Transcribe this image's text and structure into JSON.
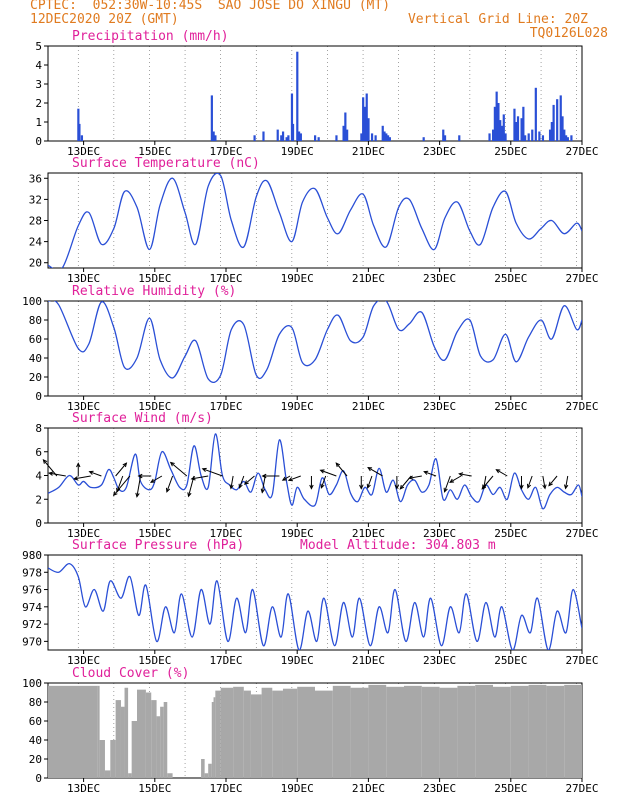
{
  "header": {
    "line1_left": "CPTEC:  052:30W-10:45S  SAO JOSE DO XINGU (MT)",
    "line2_left": "12DEC2020 20Z (GMT)",
    "line2_right": "Vertical Grid Line: 20Z",
    "line3_right": "TQ0126L028"
  },
  "colors": {
    "header": "#e07b20",
    "title": "#e0209a",
    "line": "#2a4fd6",
    "cloud": "#a8a8a8",
    "axis": "#000000"
  },
  "x_ticks": [
    "13DEC",
    "15DEC",
    "17DEC",
    "19DEC",
    "21DEC",
    "23DEC",
    "25DEC",
    "27DEC"
  ],
  "chart_data": [
    {
      "type": "bar",
      "title": "Precipitation (mm/h)",
      "ylim": [
        0,
        5
      ],
      "yticks": [
        "0",
        "1",
        "2",
        "3",
        "4",
        "5"
      ],
      "x_days": [
        12.85,
        12.88,
        12.95,
        16.6,
        16.65,
        16.7,
        17.8,
        18.05,
        18.45,
        18.55,
        18.6,
        18.7,
        18.75,
        18.85,
        18.88,
        19.0,
        19.05,
        19.08,
        19.1,
        19.5,
        19.6,
        20.1,
        20.3,
        20.35,
        20.4,
        20.8,
        20.85,
        20.9,
        20.95,
        21.0,
        21.1,
        21.2,
        21.4,
        21.45,
        21.5,
        21.55,
        21.6,
        22.55,
        23.1,
        23.15,
        23.55,
        24.4,
        24.5,
        24.55,
        24.6,
        24.65,
        24.7,
        24.75,
        24.8,
        24.85,
        25.1,
        25.15,
        25.2,
        25.3,
        25.35,
        25.4,
        25.5,
        25.6,
        25.7,
        25.8,
        25.9,
        26.1,
        26.15,
        26.2,
        26.3,
        26.4,
        26.45,
        26.5,
        26.55,
        26.6,
        26.7
      ],
      "values": [
        1.7,
        0.9,
        0.3,
        2.4,
        0.5,
        0.3,
        0.3,
        0.5,
        0.6,
        0.3,
        0.5,
        0.2,
        0.3,
        2.5,
        0.9,
        4.7,
        0.5,
        0.3,
        0.4,
        0.3,
        0.2,
        0.3,
        0.8,
        1.5,
        0.6,
        0.4,
        2.3,
        1.8,
        2.5,
        1.2,
        0.4,
        0.3,
        0.8,
        0.5,
        0.4,
        0.3,
        0.2,
        0.2,
        0.6,
        0.3,
        0.3,
        0.4,
        0.6,
        1.8,
        2.6,
        2.0,
        1.1,
        0.8,
        1.4,
        0.4,
        1.7,
        1.0,
        1.3,
        1.2,
        1.8,
        0.3,
        0.4,
        0.6,
        2.8,
        0.5,
        0.3,
        0.6,
        1.0,
        1.9,
        2.2,
        2.4,
        1.3,
        0.6,
        0.3,
        0.2,
        0.3
      ]
    },
    {
      "type": "line",
      "title": "Surface Temperature (nC)",
      "ylim": [
        19,
        37
      ],
      "yticks": [
        "20",
        "24",
        "28",
        "32",
        "36"
      ],
      "x_days": [
        12.0,
        12.4,
        12.85,
        13.15,
        13.5,
        13.85,
        14.15,
        14.5,
        14.85,
        15.15,
        15.5,
        15.85,
        16.15,
        16.5,
        16.85,
        17.15,
        17.5,
        17.85,
        18.15,
        18.5,
        18.85,
        19.15,
        19.5,
        19.85,
        20.15,
        20.5,
        20.85,
        21.15,
        21.5,
        21.85,
        22.15,
        22.5,
        22.85,
        23.15,
        23.5,
        23.85,
        24.15,
        24.5,
        24.85,
        25.15,
        25.5,
        25.85,
        26.15,
        26.5,
        26.85,
        27.0
      ],
      "values": [
        19.5,
        19.0,
        27.0,
        29.5,
        23.5,
        26.5,
        33.5,
        30.5,
        22.5,
        31.0,
        36.0,
        29.5,
        23.5,
        34.5,
        36.5,
        28.0,
        23.0,
        32.5,
        35.5,
        29.5,
        24.0,
        31.5,
        34.0,
        28.5,
        25.5,
        30.0,
        33.0,
        27.0,
        23.0,
        30.5,
        32.0,
        26.5,
        22.5,
        28.5,
        31.5,
        26.0,
        23.5,
        30.5,
        33.5,
        27.5,
        24.5,
        26.5,
        28.0,
        25.5,
        27.5,
        26.0
      ]
    },
    {
      "type": "line",
      "title": "Relative Humidity (%)",
      "ylim": [
        0,
        100
      ],
      "yticks": [
        "0",
        "20",
        "40",
        "60",
        "80",
        "100"
      ],
      "x_days": [
        12.0,
        12.3,
        12.85,
        13.15,
        13.5,
        13.85,
        14.15,
        14.5,
        14.85,
        15.15,
        15.5,
        15.85,
        16.15,
        16.5,
        16.85,
        17.15,
        17.5,
        17.85,
        18.15,
        18.5,
        18.85,
        19.15,
        19.5,
        19.85,
        20.15,
        20.5,
        20.85,
        21.15,
        21.5,
        21.85,
        22.15,
        22.5,
        22.85,
        23.15,
        23.5,
        23.85,
        24.15,
        24.5,
        24.85,
        25.15,
        25.5,
        25.85,
        26.15,
        26.5,
        26.85,
        27.0
      ],
      "values": [
        100,
        96,
        50,
        55,
        99,
        72,
        30,
        40,
        82,
        38,
        19,
        42,
        58,
        18,
        22,
        70,
        75,
        22,
        28,
        65,
        72,
        35,
        38,
        70,
        85,
        58,
        62,
        95,
        100,
        70,
        76,
        88,
        52,
        38,
        68,
        80,
        42,
        38,
        65,
        36,
        62,
        80,
        60,
        95,
        70,
        80
      ]
    },
    {
      "type": "line",
      "title": "Surface Wind (m/s)",
      "ylim": [
        0,
        8
      ],
      "yticks": [
        "0",
        "2",
        "4",
        "6",
        "8"
      ],
      "x_days": [
        12.0,
        12.3,
        12.6,
        12.85,
        13.0,
        13.2,
        13.5,
        13.7,
        13.85,
        14.0,
        14.2,
        14.45,
        14.6,
        14.85,
        15.0,
        15.2,
        15.45,
        15.7,
        15.9,
        16.1,
        16.3,
        16.5,
        16.7,
        16.9,
        17.1,
        17.3,
        17.5,
        17.7,
        17.9,
        18.1,
        18.3,
        18.5,
        18.7,
        18.85,
        19.0,
        19.2,
        19.5,
        19.7,
        19.9,
        20.1,
        20.3,
        20.5,
        20.7,
        20.9,
        21.1,
        21.3,
        21.5,
        21.7,
        21.9,
        22.1,
        22.3,
        22.5,
        22.7,
        22.9,
        23.1,
        23.3,
        23.5,
        23.7,
        23.9,
        24.1,
        24.3,
        24.5,
        24.7,
        24.9,
        25.1,
        25.3,
        25.5,
        25.7,
        25.9,
        26.1,
        26.3,
        26.5,
        26.7,
        26.9,
        27.0
      ],
      "values": [
        2.5,
        3.0,
        4.0,
        3.2,
        3.5,
        3.0,
        3.2,
        4.5,
        3.8,
        2.8,
        3.0,
        5.8,
        3.5,
        2.8,
        3.5,
        6.0,
        4.5,
        3.0,
        3.2,
        6.5,
        4.0,
        3.0,
        7.5,
        4.0,
        3.2,
        2.8,
        3.5,
        2.6,
        4.2,
        2.8,
        2.4,
        7.0,
        3.5,
        1.5,
        3.0,
        2.0,
        1.5,
        3.8,
        2.4,
        3.2,
        4.4,
        2.5,
        1.8,
        3.0,
        2.4,
        4.6,
        2.6,
        3.6,
        1.8,
        3.2,
        3.6,
        2.6,
        3.2,
        5.4,
        2.0,
        2.8,
        2.0,
        3.2,
        2.2,
        1.8,
        3.2,
        2.4,
        3.0,
        2.0,
        4.2,
        2.8,
        2.0,
        3.0,
        1.2,
        2.4,
        3.0,
        2.6,
        2.4,
        3.2,
        2.2
      ]
    },
    {
      "type": "line",
      "title": "Surface Pressure (hPa)",
      "subtitle": "Model Altitude: 304.803 m",
      "ylim": [
        969,
        980
      ],
      "yticks": [
        "970",
        "972",
        "974",
        "976",
        "978",
        "980"
      ],
      "x_days": [
        12.0,
        12.3,
        12.6,
        12.85,
        13.05,
        13.3,
        13.55,
        13.75,
        14.05,
        14.3,
        14.55,
        14.75,
        15.05,
        15.3,
        15.55,
        15.75,
        16.05,
        16.3,
        16.55,
        16.75,
        17.05,
        17.3,
        17.55,
        17.75,
        18.05,
        18.3,
        18.55,
        18.75,
        19.05,
        19.3,
        19.55,
        19.75,
        20.05,
        20.3,
        20.55,
        20.75,
        21.05,
        21.3,
        21.55,
        21.75,
        22.05,
        22.3,
        22.55,
        22.75,
        23.05,
        23.3,
        23.55,
        23.75,
        24.05,
        24.3,
        24.55,
        24.75,
        25.05,
        25.3,
        25.55,
        25.75,
        26.05,
        26.3,
        26.55,
        26.75,
        27.0
      ],
      "values": [
        978.5,
        978.0,
        979.0,
        977.5,
        974.0,
        976.0,
        973.5,
        977.0,
        975.0,
        977.5,
        973.0,
        976.5,
        970.0,
        974.0,
        971.0,
        975.5,
        970.5,
        976.0,
        972.0,
        977.0,
        970.0,
        975.0,
        971.0,
        976.0,
        969.5,
        974.0,
        970.5,
        975.5,
        969.0,
        973.5,
        970.0,
        975.0,
        969.5,
        974.5,
        970.5,
        975.0,
        969.5,
        974.0,
        971.0,
        976.0,
        970.0,
        974.5,
        970.5,
        975.0,
        969.5,
        974.0,
        971.0,
        975.5,
        970.0,
        974.5,
        970.5,
        974.0,
        969.0,
        973.0,
        971.0,
        975.0,
        969.0,
        973.5,
        971.0,
        976.0,
        971.5
      ]
    },
    {
      "type": "area",
      "title": "Cloud Cover (%)",
      "ylim": [
        0,
        100
      ],
      "yticks": [
        "0",
        "20",
        "40",
        "60",
        "80",
        "100"
      ],
      "x_days": [
        12.0,
        13.4,
        13.45,
        13.6,
        13.75,
        13.9,
        14.05,
        14.15,
        14.25,
        14.35,
        14.5,
        14.75,
        14.9,
        15.05,
        15.15,
        15.25,
        15.35,
        15.5,
        15.75,
        16.0,
        16.3,
        16.4,
        16.5,
        16.6,
        16.65,
        16.7,
        16.85,
        17.2,
        17.5,
        17.7,
        18.0,
        18.3,
        18.6,
        19.0,
        19.5,
        20.0,
        20.5,
        21.0,
        21.5,
        22.0,
        22.5,
        23.0,
        23.5,
        24.0,
        24.5,
        25.0,
        25.5,
        26.0,
        26.5,
        27.0
      ],
      "values": [
        97,
        97,
        40,
        8,
        40,
        82,
        75,
        95,
        5,
        60,
        93,
        90,
        82,
        65,
        75,
        80,
        5,
        0,
        0,
        0,
        20,
        5,
        15,
        80,
        85,
        92,
        95,
        96,
        92,
        88,
        95,
        92,
        94,
        96,
        92,
        97,
        95,
        98,
        96,
        97,
        96,
        95,
        97,
        98,
        96,
        97,
        98,
        97,
        98,
        99
      ]
    }
  ],
  "wind_arrows": {
    "x_days": [
      12.25,
      12.5,
      12.85,
      13.2,
      13.5,
      13.9,
      14.1,
      14.3,
      14.6,
      14.9,
      15.2,
      15.5,
      15.9,
      16.1,
      16.5,
      16.9,
      17.2,
      17.5,
      17.8,
      18.1,
      18.5,
      18.8,
      19.1,
      19.4,
      19.8,
      20.1,
      20.4,
      20.8,
      21.1,
      21.4,
      21.8,
      22.2,
      22.5,
      22.9,
      23.3,
      23.6,
      23.9,
      24.3,
      24.5,
      24.9,
      25.3,
      25.6,
      25.9,
      26.3,
      26.6
    ],
    "directions_deg": [
      320,
      280,
      0,
      260,
      290,
      40,
      200,
      220,
      190,
      270,
      240,
      200,
      310,
      195,
      260,
      290,
      190,
      200,
      230,
      190,
      270,
      240,
      250,
      180,
      200,
      290,
      320,
      180,
      200,
      300,
      180,
      220,
      260,
      290,
      200,
      240,
      280,
      190,
      220,
      300,
      180,
      200,
      170,
      220,
      190
    ],
    "speeds": [
      5,
      4,
      3,
      4,
      3,
      4,
      4,
      6,
      5,
      3,
      3,
      4,
      5,
      5,
      4,
      5,
      3,
      3,
      3,
      4,
      4,
      2,
      3,
      3,
      3,
      4,
      4,
      3,
      3,
      4,
      3,
      4,
      3,
      3,
      4,
      3,
      3,
      3,
      4,
      3,
      3,
      3,
      3,
      3,
      3
    ]
  }
}
